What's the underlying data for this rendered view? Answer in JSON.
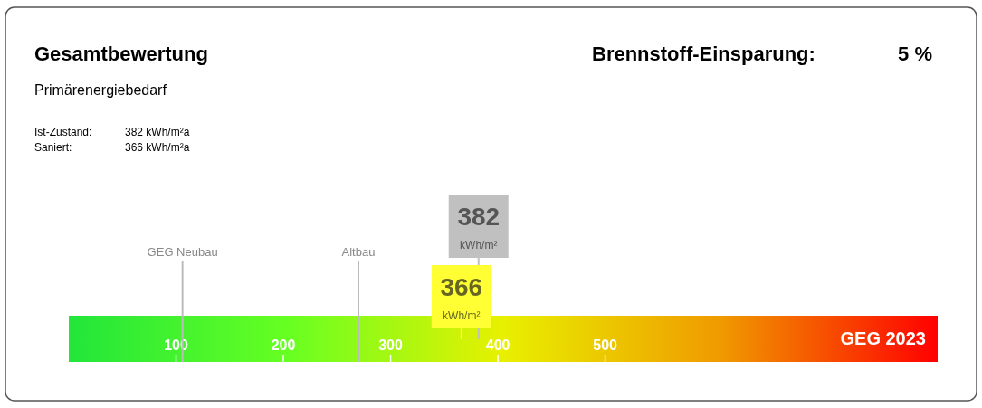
{
  "chart_data": {
    "type": "bar",
    "orientation": "horizontal",
    "title": "Gesamtbewertung",
    "subtitle": "Primärenergiebedarf",
    "categories": [
      "GEG 2023"
    ],
    "values": [
      810
    ],
    "annotations": [
      "Ist-Zustand:",
      "382 kWh/m²a",
      "Saniert:",
      "366 kWh/m²a",
      "Brennstoff-Einsparung:",
      "5 %"
    ],
    "xlabel": "kWh/m²",
    "xlim": [
      0,
      810
    ],
    "xticks": [
      100,
      200,
      300,
      400,
      500
    ],
    "ref_lines": [
      {
        "axis": "x",
        "value": 106,
        "label": "GEG  Neubau",
        "color": "#bbbbbb"
      },
      {
        "axis": "x",
        "value": 270,
        "label": "Altbau",
        "color": "#bbbbbb"
      },
      {
        "axis": "x",
        "value": 382,
        "label": "382",
        "color": "#c0c0c0"
      },
      {
        "axis": "x",
        "value": 366,
        "label": "366",
        "color": "#ffff33"
      }
    ]
  }
}
